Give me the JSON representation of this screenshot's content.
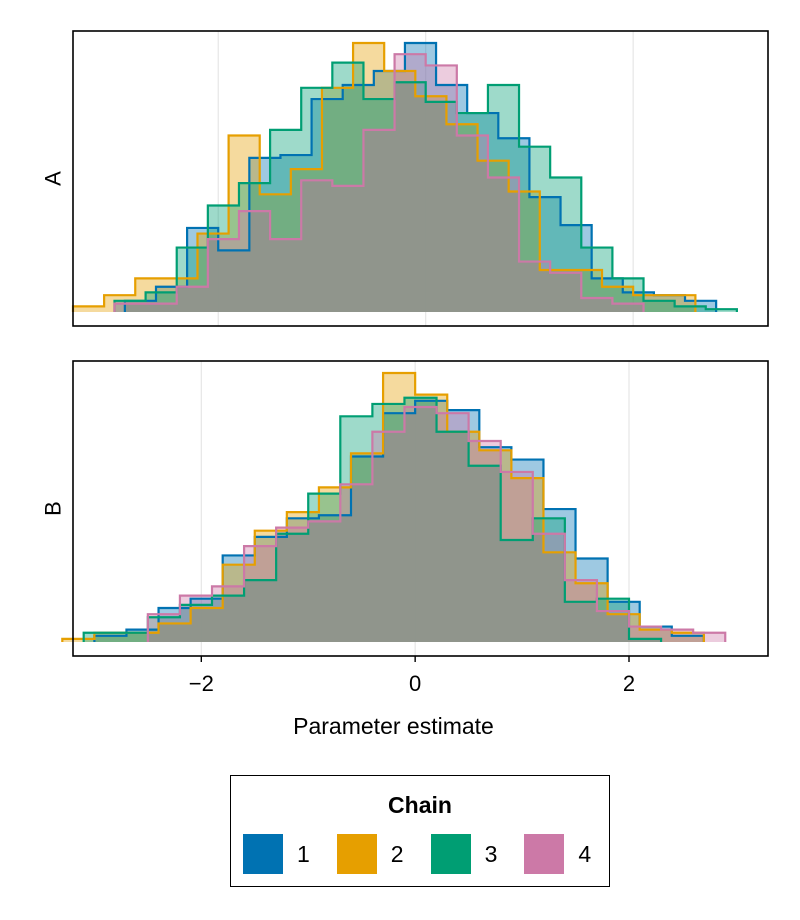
{
  "chart_data": {
    "type": "histogram",
    "xlabel": "Parameter estimate",
    "legend": {
      "title": "Chain",
      "placement": "bottom-center"
    },
    "grid": true,
    "colors": {
      "1": "#0072b2",
      "2": "#e69f00",
      "3": "#009e73",
      "4": "#cc79a7",
      "overlap": "#8f958c"
    },
    "panels": [
      {
        "label": "A",
        "xlim": [
          -3.4,
          3.3
        ],
        "x_ticks": [],
        "series": [
          {
            "name": "1",
            "bin_edges": [
              -2.9,
              -2.6,
              -2.3,
              -2.0,
              -1.7,
              -1.4,
              -1.1,
              -0.8,
              -0.5,
              -0.2,
              0.1,
              0.4,
              0.7,
              1.0,
              1.3,
              1.6,
              1.9,
              2.2,
              2.5,
              2.8
            ],
            "counts": [
              4,
              9,
              30,
              22,
              55,
              56,
              76,
              81,
              86,
              96,
              81,
              71,
              62,
              41,
              31,
              12,
              7,
              6,
              4
            ]
          },
          {
            "name": "2",
            "bin_edges": [
              -3.4,
              -3.1,
              -2.8,
              -2.5,
              -2.2,
              -1.9,
              -1.6,
              -1.3,
              -1.0,
              -0.7,
              -0.4,
              -0.1,
              0.2,
              0.5,
              0.8,
              1.1,
              1.4,
              1.7,
              2.0,
              2.3,
              2.6
            ],
            "counts": [
              2,
              6,
              12,
              12,
              28,
              63,
              42,
              51,
              80,
              96,
              86,
              77,
              67,
              54,
              43,
              15,
              15,
              9,
              6,
              6
            ]
          },
          {
            "name": "3",
            "bin_edges": [
              -3.0,
              -2.7,
              -2.4,
              -2.1,
              -1.8,
              -1.5,
              -1.2,
              -0.9,
              -0.6,
              -0.3,
              0.0,
              0.3,
              0.6,
              0.9,
              1.2,
              1.5,
              1.8,
              2.1,
              2.4,
              2.7,
              3.0
            ],
            "counts": [
              4,
              7,
              23,
              38,
              46,
              65,
              80,
              89,
              76,
              82,
              75,
              71,
              81,
              59,
              48,
              23,
              12,
              4,
              2,
              1
            ]
          },
          {
            "name": "4",
            "bin_edges": [
              -3.0,
              -2.7,
              -2.4,
              -2.1,
              -1.8,
              -1.5,
              -1.2,
              -0.9,
              -0.6,
              -0.3,
              0.0,
              0.3,
              0.6,
              0.9,
              1.2,
              1.5,
              1.8,
              2.1
            ],
            "counts": [
              3,
              3,
              9,
              26,
              36,
              26,
              47,
              45,
              65,
              92,
              88,
              63,
              48,
              18,
              14,
              5,
              3
            ]
          }
        ]
      },
      {
        "label": "B",
        "xlim": [
          -3.2,
          3.3
        ],
        "x_ticks": [
          -2,
          0,
          2
        ],
        "series": [
          {
            "name": "1",
            "bin_edges": [
              -3.0,
              -2.7,
              -2.4,
              -2.1,
              -1.8,
              -1.5,
              -1.2,
              -0.9,
              -0.6,
              -0.3,
              0.0,
              0.3,
              0.6,
              0.9,
              1.2,
              1.5,
              1.8,
              2.1,
              2.4,
              2.7
            ],
            "counts": [
              2,
              4,
              11,
              14,
              28,
              34,
              40,
              41,
              60,
              74,
              78,
              75,
              63,
              59,
              43,
              27,
              13,
              5,
              2
            ]
          },
          {
            "name": "2",
            "bin_edges": [
              -3.3,
              -3.0,
              -2.7,
              -2.4,
              -2.1,
              -1.8,
              -1.5,
              -1.2,
              -0.9,
              -0.6,
              -0.3,
              0.0,
              0.3,
              0.6,
              0.9,
              1.2,
              1.5,
              1.8,
              2.1,
              2.4,
              2.7
            ],
            "counts": [
              1,
              3,
              3,
              6,
              11,
              25,
              36,
              42,
              50,
              61,
              87,
              80,
              68,
              62,
              53,
              29,
              19,
              9,
              4,
              3
            ]
          },
          {
            "name": "3",
            "bin_edges": [
              -3.1,
              -2.8,
              -2.5,
              -2.2,
              -1.9,
              -1.6,
              -1.3,
              -1.0,
              -0.7,
              -0.4,
              -0.1,
              0.2,
              0.5,
              0.8,
              1.1,
              1.4,
              1.7,
              2.0,
              2.3
            ],
            "counts": [
              3,
              3,
              8,
              12,
              15,
              20,
              35,
              48,
              73,
              77,
              79,
              68,
              57,
              33,
              40,
              13,
              14,
              1
            ]
          },
          {
            "name": "4",
            "bin_edges": [
              -2.5,
              -2.2,
              -1.9,
              -1.6,
              -1.3,
              -1.0,
              -0.7,
              -0.4,
              -0.1,
              0.2,
              0.5,
              0.8,
              1.1,
              1.4,
              1.7,
              2.0,
              2.3,
              2.6,
              2.9
            ],
            "counts": [
              9,
              15,
              18,
              31,
              37,
              39,
              51,
              68,
              76,
              74,
              65,
              55,
              35,
              20,
              10,
              5,
              4,
              3
            ]
          }
        ]
      }
    ]
  }
}
